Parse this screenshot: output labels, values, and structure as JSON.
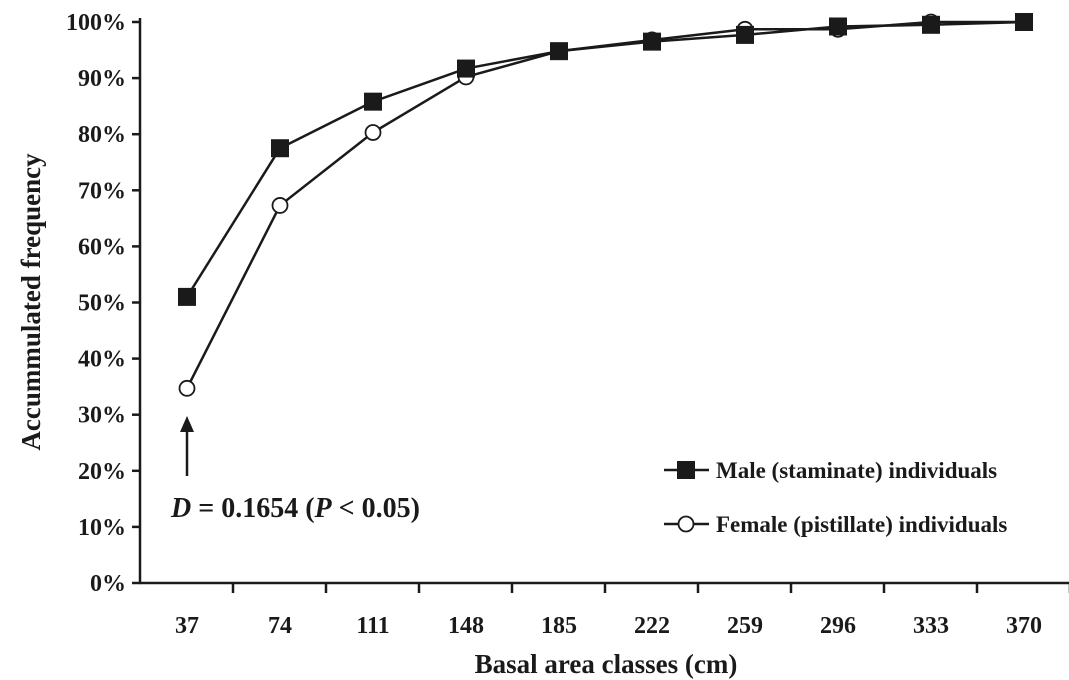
{
  "chart_data": {
    "type": "line",
    "title": "",
    "xlabel": "Basal area classes (cm)",
    "ylabel": "Accummulated frequency",
    "categories": [
      "37",
      "74",
      "111",
      "148",
      "185",
      "222",
      "259",
      "296",
      "333",
      "370"
    ],
    "y_ticks": [
      "0%",
      "10%",
      "20%",
      "30%",
      "40%",
      "50%",
      "60%",
      "70%",
      "80%",
      "90%",
      "100%"
    ],
    "ylim": [
      0,
      100
    ],
    "grid": false,
    "legend_position": "bottom-right",
    "series": [
      {
        "name": "Male (staminate) individuals",
        "marker": "filled-square",
        "color": "#1a1a1a",
        "values": [
          51,
          77.5,
          85.8,
          91.7,
          94.8,
          96.5,
          97.7,
          99.2,
          99.5,
          100
        ]
      },
      {
        "name": "Female (pistillate) individuals",
        "marker": "open-circle",
        "color": "#1a1a1a",
        "values": [
          34.7,
          67.3,
          80.3,
          90.2,
          94.8,
          96.8,
          98.7,
          98.7,
          100,
          100
        ]
      }
    ],
    "annotation": {
      "prefix": "D",
      "middle": " = 0.1654 (",
      "p_symbol": "P",
      "suffix": " < 0.05)",
      "points_to_category": "37"
    }
  }
}
